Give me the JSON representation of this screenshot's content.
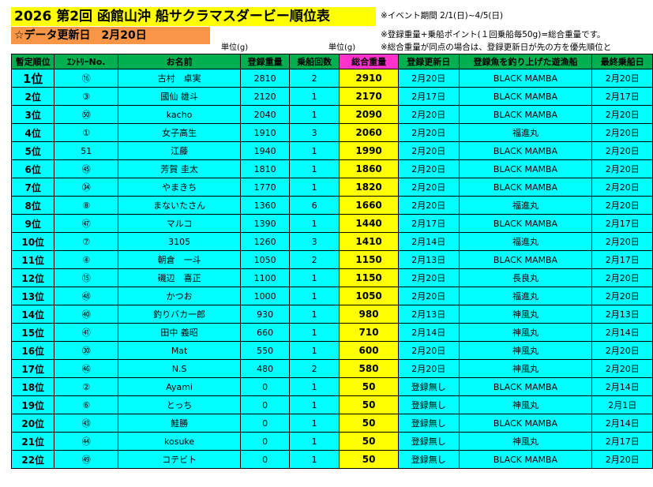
{
  "title": "2026 第2回 函館山沖 船サクラマスダービー順位表",
  "update_label": "☆データ更新日　2月20日",
  "notes": {
    "event_period": "※イベント期間 2/1(日)~4/5(日)",
    "formula": "※登録重量+乗船ポイント(１回乗船毎50g)=総合重量です。",
    "tiebreak": "※総合重量が同点の場合は、登録更新日が先の方を優先順位と"
  },
  "units": {
    "reg": "単位(g)",
    "total": "単位(g)"
  },
  "headers": [
    "暫定順位",
    "ｴﾝﾄﾘｰNo.",
    "お名前",
    "登録重量",
    "乗船回数",
    "総合重量",
    "登録更新日",
    "登録魚を釣り上げた遊漁船",
    "最終乗船日"
  ],
  "rows": [
    {
      "rank": "1位",
      "entry": "⑯",
      "name": "古村　卓実",
      "reg": "2810",
      "boards": "2",
      "total": "2910",
      "updated": "2月20日",
      "boat": "BLACK MAMBA",
      "last": "2月20日"
    },
    {
      "rank": "2位",
      "entry": "③",
      "name": "國仙 雄斗",
      "reg": "2120",
      "boards": "1",
      "total": "2170",
      "updated": "2月17日",
      "boat": "BLACK MAMBA",
      "last": "2月17日"
    },
    {
      "rank": "3位",
      "entry": "㊿",
      "name": "kacho",
      "reg": "2040",
      "boards": "1",
      "total": "2090",
      "updated": "2月20日",
      "boat": "BLACK MAMBA",
      "last": "2月20日"
    },
    {
      "rank": "4位",
      "entry": "①",
      "name": "女子高生",
      "reg": "1910",
      "boards": "3",
      "total": "2060",
      "updated": "2月20日",
      "boat": "福進丸",
      "last": "2月20日"
    },
    {
      "rank": "5位",
      "entry": "51",
      "name": "江藤",
      "reg": "1940",
      "boards": "1",
      "total": "1990",
      "updated": "2月20日",
      "boat": "BLACK MAMBA",
      "last": "2月20日"
    },
    {
      "rank": "6位",
      "entry": "㊺",
      "name": "芳賀 圭太",
      "reg": "1810",
      "boards": "1",
      "total": "1860",
      "updated": "2月20日",
      "boat": "BLACK MAMBA",
      "last": "2月20日"
    },
    {
      "rank": "7位",
      "entry": "㉞",
      "name": "やまきち",
      "reg": "1770",
      "boards": "1",
      "total": "1820",
      "updated": "2月20日",
      "boat": "BLACK MAMBA",
      "last": "2月20日"
    },
    {
      "rank": "8位",
      "entry": "⑧",
      "name": "まないたさん",
      "reg": "1360",
      "boards": "6",
      "total": "1660",
      "updated": "2月20日",
      "boat": "福進丸",
      "last": "2月20日"
    },
    {
      "rank": "9位",
      "entry": "㊼",
      "name": "マルコ",
      "reg": "1390",
      "boards": "1",
      "total": "1440",
      "updated": "2月17日",
      "boat": "BLACK MAMBA",
      "last": "2月17日"
    },
    {
      "rank": "10位",
      "entry": "⑦",
      "name": "3105",
      "reg": "1260",
      "boards": "3",
      "total": "1410",
      "updated": "2月14日",
      "boat": "福進丸",
      "last": "2月20日"
    },
    {
      "rank": "11位",
      "entry": "④",
      "name": "朝倉　一斗",
      "reg": "1050",
      "boards": "2",
      "total": "1150",
      "updated": "2月13日",
      "boat": "BLACK MAMBA",
      "last": "2月17日"
    },
    {
      "rank": "12位",
      "entry": "⑮",
      "name": "磯辺　喜正",
      "reg": "1100",
      "boards": "1",
      "total": "1150",
      "updated": "2月20日",
      "boat": "長良丸",
      "last": "2月20日"
    },
    {
      "rank": "13位",
      "entry": "㊽",
      "name": "かつお",
      "reg": "1000",
      "boards": "1",
      "total": "1050",
      "updated": "2月20日",
      "boat": "福進丸",
      "last": "2月20日"
    },
    {
      "rank": "14位",
      "entry": "㊵",
      "name": "釣りバカ一郎",
      "reg": "930",
      "boards": "1",
      "total": "980",
      "updated": "2月13日",
      "boat": "神風丸",
      "last": "2月13日"
    },
    {
      "rank": "15位",
      "entry": "㊶",
      "name": "田中 義昭",
      "reg": "660",
      "boards": "1",
      "total": "710",
      "updated": "2月14日",
      "boat": "神風丸",
      "last": "2月14日"
    },
    {
      "rank": "16位",
      "entry": "㉚",
      "name": "Mat",
      "reg": "550",
      "boards": "1",
      "total": "600",
      "updated": "2月20日",
      "boat": "神風丸",
      "last": "2月20日"
    },
    {
      "rank": "17位",
      "entry": "㊻",
      "name": "N.S",
      "reg": "480",
      "boards": "2",
      "total": "580",
      "updated": "2月20日",
      "boat": "神風丸",
      "last": "2月20日"
    },
    {
      "rank": "18位",
      "entry": "②",
      "name": "Ayami",
      "reg": "0",
      "boards": "1",
      "total": "50",
      "updated": "登録無し",
      "boat": "BLACK MAMBA",
      "last": "2月14日"
    },
    {
      "rank": "19位",
      "entry": "⑥",
      "name": "とっち",
      "reg": "0",
      "boards": "1",
      "total": "50",
      "updated": "登録無し",
      "boat": "神風丸",
      "last": "2月1日"
    },
    {
      "rank": "20位",
      "entry": "㊸",
      "name": "鮭勝",
      "reg": "0",
      "boards": "1",
      "total": "50",
      "updated": "登録無し",
      "boat": "BLACK MAMBA",
      "last": "2月14日"
    },
    {
      "rank": "21位",
      "entry": "㊹",
      "name": "kosuke",
      "reg": "0",
      "boards": "1",
      "total": "50",
      "updated": "登録無し",
      "boat": "神風丸",
      "last": "2月17日"
    },
    {
      "rank": "22位",
      "entry": "㊾",
      "name": "コテビト",
      "reg": "0",
      "boards": "1",
      "total": "50",
      "updated": "登録無し",
      "boat": "BLACK MAMBA",
      "last": "2月20日"
    }
  ]
}
